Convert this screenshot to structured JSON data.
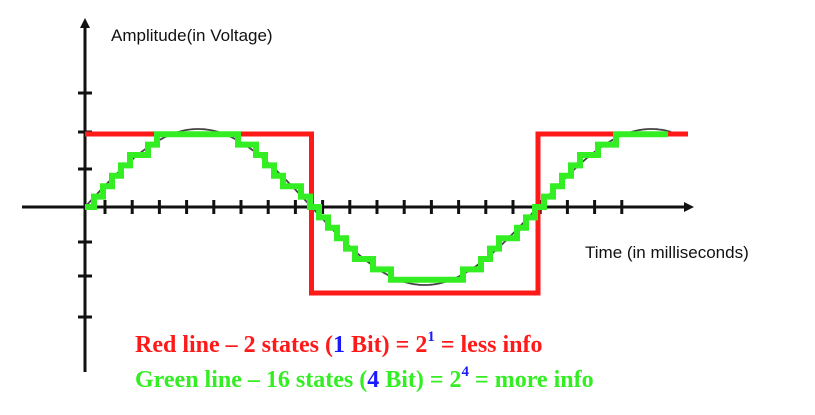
{
  "labels": {
    "y_axis": "Amplitude(in Voltage)",
    "x_axis": "Time (in milliseconds)"
  },
  "captions": {
    "red": {
      "lead": "Red line – 2 states (",
      "bits": "1",
      "mid": " Bit) = 2",
      "exp": "1",
      "tail": " = less info"
    },
    "green": {
      "lead": "Green line – 16 states (",
      "bits": "4",
      "mid": " Bit) = 2",
      "exp": "4",
      "tail": " = more info"
    }
  },
  "colors": {
    "red": "#ff1a1a",
    "green": "#33ee22",
    "blue": "#1a1aff",
    "axis": "#111111",
    "sine": "#444444"
  },
  "diagram": {
    "sine_cycles": 1,
    "red_states": 2,
    "green_states": 16
  }
}
